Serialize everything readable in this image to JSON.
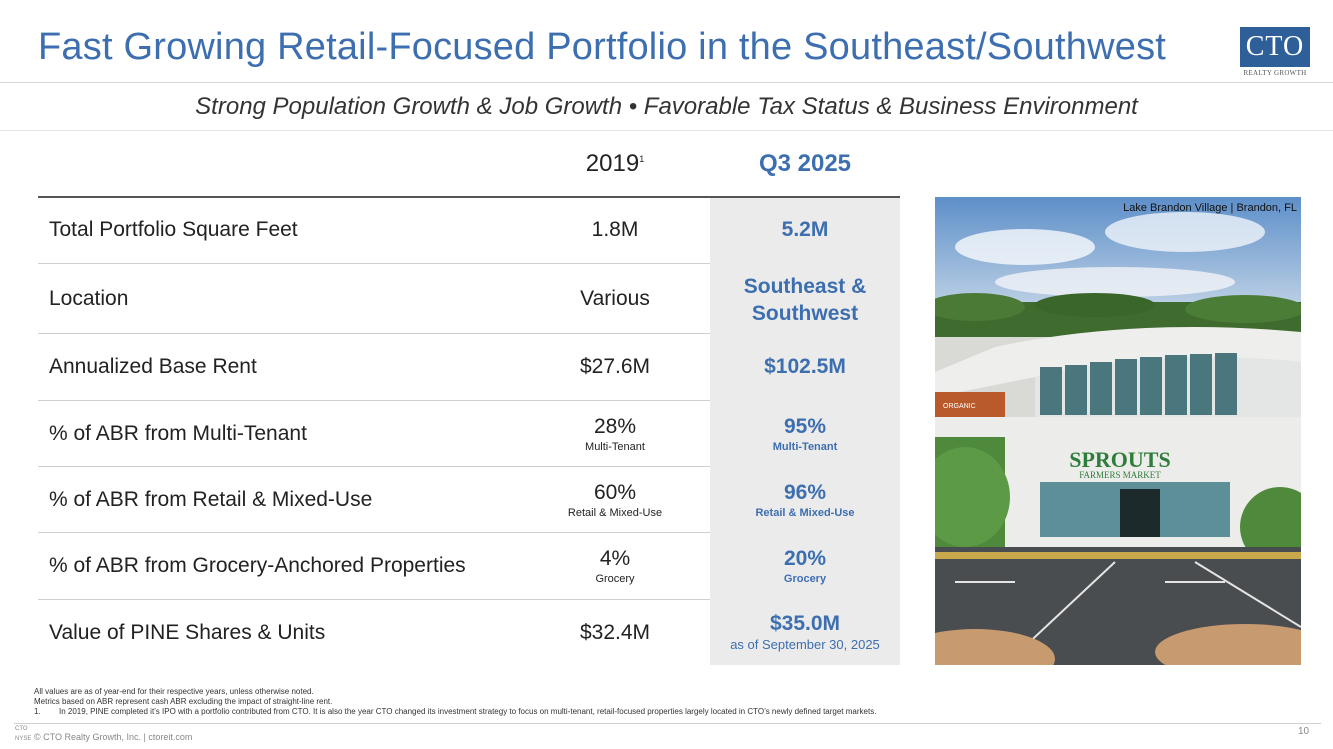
{
  "header": {
    "title": "Fast Growing Retail-Focused Portfolio in the Southeast/Southwest",
    "subtitle": "Strong Population Growth & Job Growth • Favorable Tax Status & Business Environment",
    "logo_text": "CTO",
    "logo_subtext": "REALTY GROWTH"
  },
  "table": {
    "col_2019": "2019",
    "col_2019_footnote": "1",
    "col_q3": "Q3 2025",
    "rows": [
      {
        "label": "Total Portfolio Square Feet",
        "v2019": "1.8M",
        "vq3": "5.2M"
      },
      {
        "label": "Location",
        "v2019": "Various",
        "vq3_line1": "Southeast &",
        "vq3_line2": "Southwest"
      },
      {
        "label": "Annualized Base Rent",
        "v2019": "$27.6M",
        "vq3": "$102.5M"
      },
      {
        "label": "% of ABR from Multi-Tenant",
        "v2019": "28%",
        "v2019_sub": "Multi-Tenant",
        "vq3": "95%",
        "vq3_sub": "Multi-Tenant"
      },
      {
        "label": "% of ABR from Retail & Mixed-Use",
        "v2019": "60%",
        "v2019_sub": "Retail & Mixed-Use",
        "vq3": "96%",
        "vq3_sub": "Retail & Mixed-Use"
      },
      {
        "label": "% of ABR from Grocery-Anchored Properties",
        "v2019": "4%",
        "v2019_sub": "Grocery",
        "vq3": "20%",
        "vq3_sub": "Grocery"
      },
      {
        "label": "Value of PINE Shares & Units",
        "v2019": "$32.4M",
        "vq3": "$35.0M",
        "vq3_note": "as of September 30, 2025"
      }
    ]
  },
  "photo": {
    "caption": "Lake Brandon Village | Brandon, FL",
    "store_sign": "SPROUTS",
    "store_sign_sub": "FARMERS MARKET",
    "side_sign": "ORGANIC"
  },
  "footnotes": {
    "line1": "All values are as of year-end for their respective years, unless otherwise noted.",
    "line2": "Metrics based on ABR represent cash ABR excluding the impact of straight-line rent.",
    "fn1_num": "1.",
    "fn1_text": "In 2019, PINE completed it’s IPO with a portfolio contributed from CTO.  It is also the year CTO changed its investment strategy to focus on multi-tenant, retail-focused properties largely located in CTO’s newly defined target markets."
  },
  "footer": {
    "logo_line1": "CTO",
    "logo_line2": "NYSE",
    "copyright": "© CTO Realty Growth, Inc. | ctoreit.com",
    "page_number": "10"
  },
  "colors": {
    "brand_blue": "#3d6fb0",
    "shade_gray": "#ebebeb"
  }
}
